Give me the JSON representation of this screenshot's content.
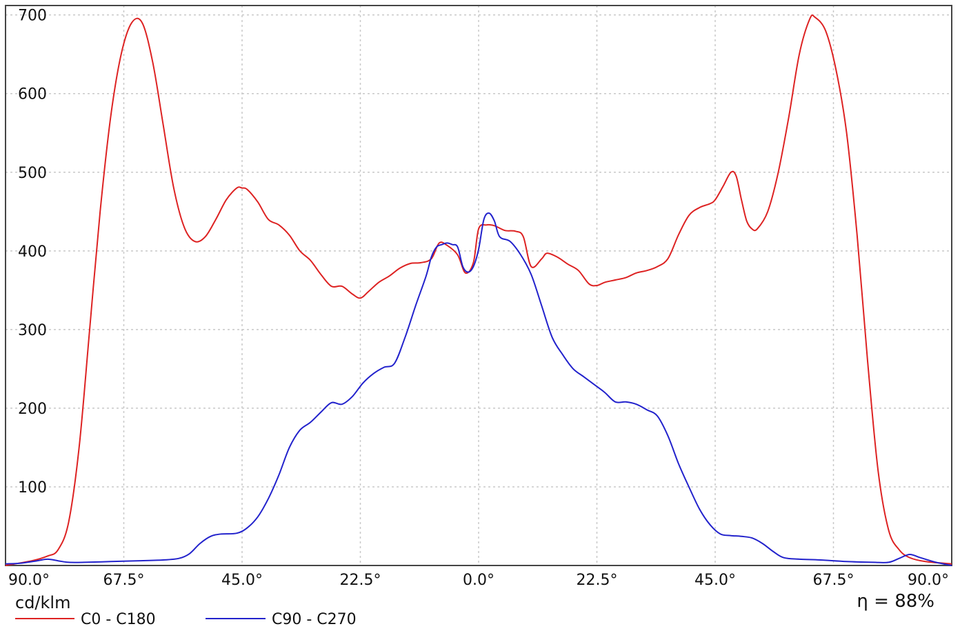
{
  "chart_data": {
    "type": "line",
    "y_unit": "cd/klm",
    "efficiency_label": "η = 88%",
    "ylim": [
      0,
      700
    ],
    "y_ticks": [
      100,
      200,
      300,
      400,
      500,
      600,
      700
    ],
    "y_tick_labels": [
      "100",
      "200",
      "300",
      "400",
      "500",
      "600",
      "700"
    ],
    "x_axis": "polar angle, 90° on the left through 0° to 90° on the right (x as signed degrees, -90 to 90)",
    "xlim": [
      -90,
      90
    ],
    "x_ticks": [
      -90,
      -67.5,
      -45,
      -22.5,
      0,
      22.5,
      45,
      67.5,
      90
    ],
    "x_tick_labels": [
      "90.0°",
      "67.5°",
      "45.0°",
      "22.5°",
      "0.0°",
      "22.5°",
      "45.0°",
      "67.5°",
      "90.0°"
    ],
    "grid": true,
    "legend_position": "bottom-left",
    "colors": {
      "red": "#dd2222",
      "blue": "#2222cc",
      "grid": "#c8c8c8",
      "frame": "#444444"
    },
    "series": [
      {
        "name": "C0 - C180",
        "color": "#dd2222",
        "points": [
          [
            -90,
            0
          ],
          [
            -85,
            6
          ],
          [
            -82,
            12
          ],
          [
            -80,
            20
          ],
          [
            -78,
            55
          ],
          [
            -76,
            150
          ],
          [
            -74,
            300
          ],
          [
            -72,
            450
          ],
          [
            -70,
            570
          ],
          [
            -68,
            650
          ],
          [
            -66,
            690
          ],
          [
            -64,
            690
          ],
          [
            -62,
            640
          ],
          [
            -60,
            560
          ],
          [
            -58,
            480
          ],
          [
            -56,
            430
          ],
          [
            -54,
            412
          ],
          [
            -52,
            418
          ],
          [
            -50,
            440
          ],
          [
            -48,
            465
          ],
          [
            -46,
            480
          ],
          [
            -45,
            480
          ],
          [
            -44,
            478
          ],
          [
            -42,
            462
          ],
          [
            -40,
            440
          ],
          [
            -38,
            433
          ],
          [
            -36,
            420
          ],
          [
            -34,
            400
          ],
          [
            -32,
            388
          ],
          [
            -30,
            370
          ],
          [
            -28,
            355
          ],
          [
            -26,
            355
          ],
          [
            -24,
            345
          ],
          [
            -22.5,
            340
          ],
          [
            -21,
            348
          ],
          [
            -19,
            360
          ],
          [
            -17,
            368
          ],
          [
            -15,
            378
          ],
          [
            -13,
            384
          ],
          [
            -11,
            385
          ],
          [
            -9,
            390
          ],
          [
            -7.5,
            410
          ],
          [
            -6,
            407
          ],
          [
            -4,
            395
          ],
          [
            -2.5,
            372
          ],
          [
            -1,
            385
          ],
          [
            0,
            428
          ],
          [
            1.5,
            433
          ],
          [
            3,
            432
          ],
          [
            5,
            426
          ],
          [
            7,
            425
          ],
          [
            8.5,
            418
          ],
          [
            10,
            380
          ],
          [
            12,
            390
          ],
          [
            13,
            397
          ],
          [
            15,
            392
          ],
          [
            17,
            383
          ],
          [
            19,
            375
          ],
          [
            21,
            358
          ],
          [
            22.5,
            356
          ],
          [
            24,
            360
          ],
          [
            26,
            363
          ],
          [
            28,
            366
          ],
          [
            30,
            372
          ],
          [
            32,
            375
          ],
          [
            34,
            380
          ],
          [
            36,
            390
          ],
          [
            38,
            420
          ],
          [
            40,
            445
          ],
          [
            42,
            455
          ],
          [
            44,
            460
          ],
          [
            45,
            465
          ],
          [
            46.5,
            482
          ],
          [
            48,
            500
          ],
          [
            49,
            495
          ],
          [
            50,
            465
          ],
          [
            51,
            438
          ],
          [
            52,
            428
          ],
          [
            53,
            428
          ],
          [
            55,
            450
          ],
          [
            57,
            500
          ],
          [
            59,
            570
          ],
          [
            61,
            650
          ],
          [
            63,
            695
          ],
          [
            64,
            697
          ],
          [
            66,
            680
          ],
          [
            68,
            630
          ],
          [
            70,
            550
          ],
          [
            72,
            420
          ],
          [
            74,
            260
          ],
          [
            76,
            120
          ],
          [
            78,
            45
          ],
          [
            80,
            20
          ],
          [
            82,
            10
          ],
          [
            85,
            5
          ],
          [
            90,
            2
          ]
        ]
      },
      {
        "name": "C90 - C270",
        "color": "#2222cc",
        "points": [
          [
            -90,
            2
          ],
          [
            -87,
            3
          ],
          [
            -84,
            6
          ],
          [
            -82,
            8
          ],
          [
            -80,
            6
          ],
          [
            -78,
            4
          ],
          [
            -75,
            4
          ],
          [
            -70,
            5
          ],
          [
            -65,
            6
          ],
          [
            -60,
            7
          ],
          [
            -57,
            9
          ],
          [
            -55,
            15
          ],
          [
            -53,
            28
          ],
          [
            -51,
            37
          ],
          [
            -49,
            40
          ],
          [
            -46,
            41
          ],
          [
            -44,
            48
          ],
          [
            -42,
            62
          ],
          [
            -40,
            85
          ],
          [
            -38,
            115
          ],
          [
            -36,
            150
          ],
          [
            -34,
            172
          ],
          [
            -32,
            182
          ],
          [
            -30,
            195
          ],
          [
            -28,
            207
          ],
          [
            -26,
            205
          ],
          [
            -24,
            215
          ],
          [
            -22,
            232
          ],
          [
            -20,
            244
          ],
          [
            -18,
            252
          ],
          [
            -16,
            257
          ],
          [
            -14,
            290
          ],
          [
            -12,
            330
          ],
          [
            -10,
            368
          ],
          [
            -9,
            392
          ],
          [
            -8,
            405
          ],
          [
            -7,
            408
          ],
          [
            -6,
            410
          ],
          [
            -5,
            408
          ],
          [
            -4,
            405
          ],
          [
            -3,
            380
          ],
          [
            -2,
            373
          ],
          [
            -1,
            380
          ],
          [
            0,
            402
          ],
          [
            1,
            440
          ],
          [
            2,
            448
          ],
          [
            3,
            438
          ],
          [
            4,
            418
          ],
          [
            6,
            412
          ],
          [
            8,
            395
          ],
          [
            10,
            370
          ],
          [
            12,
            330
          ],
          [
            14,
            290
          ],
          [
            16,
            268
          ],
          [
            18,
            250
          ],
          [
            20,
            240
          ],
          [
            22,
            230
          ],
          [
            24,
            220
          ],
          [
            26,
            208
          ],
          [
            28,
            208
          ],
          [
            30,
            205
          ],
          [
            32,
            198
          ],
          [
            34,
            190
          ],
          [
            36,
            165
          ],
          [
            38,
            130
          ],
          [
            40,
            100
          ],
          [
            42,
            72
          ],
          [
            44,
            52
          ],
          [
            46,
            40
          ],
          [
            48,
            38
          ],
          [
            50,
            37
          ],
          [
            52,
            35
          ],
          [
            54,
            28
          ],
          [
            56,
            18
          ],
          [
            58,
            10
          ],
          [
            61,
            8
          ],
          [
            65,
            7
          ],
          [
            70,
            5
          ],
          [
            75,
            4
          ],
          [
            78,
            4
          ],
          [
            80,
            9
          ],
          [
            82,
            14
          ],
          [
            84,
            10
          ],
          [
            87,
            4
          ],
          [
            90,
            0
          ]
        ]
      }
    ]
  }
}
